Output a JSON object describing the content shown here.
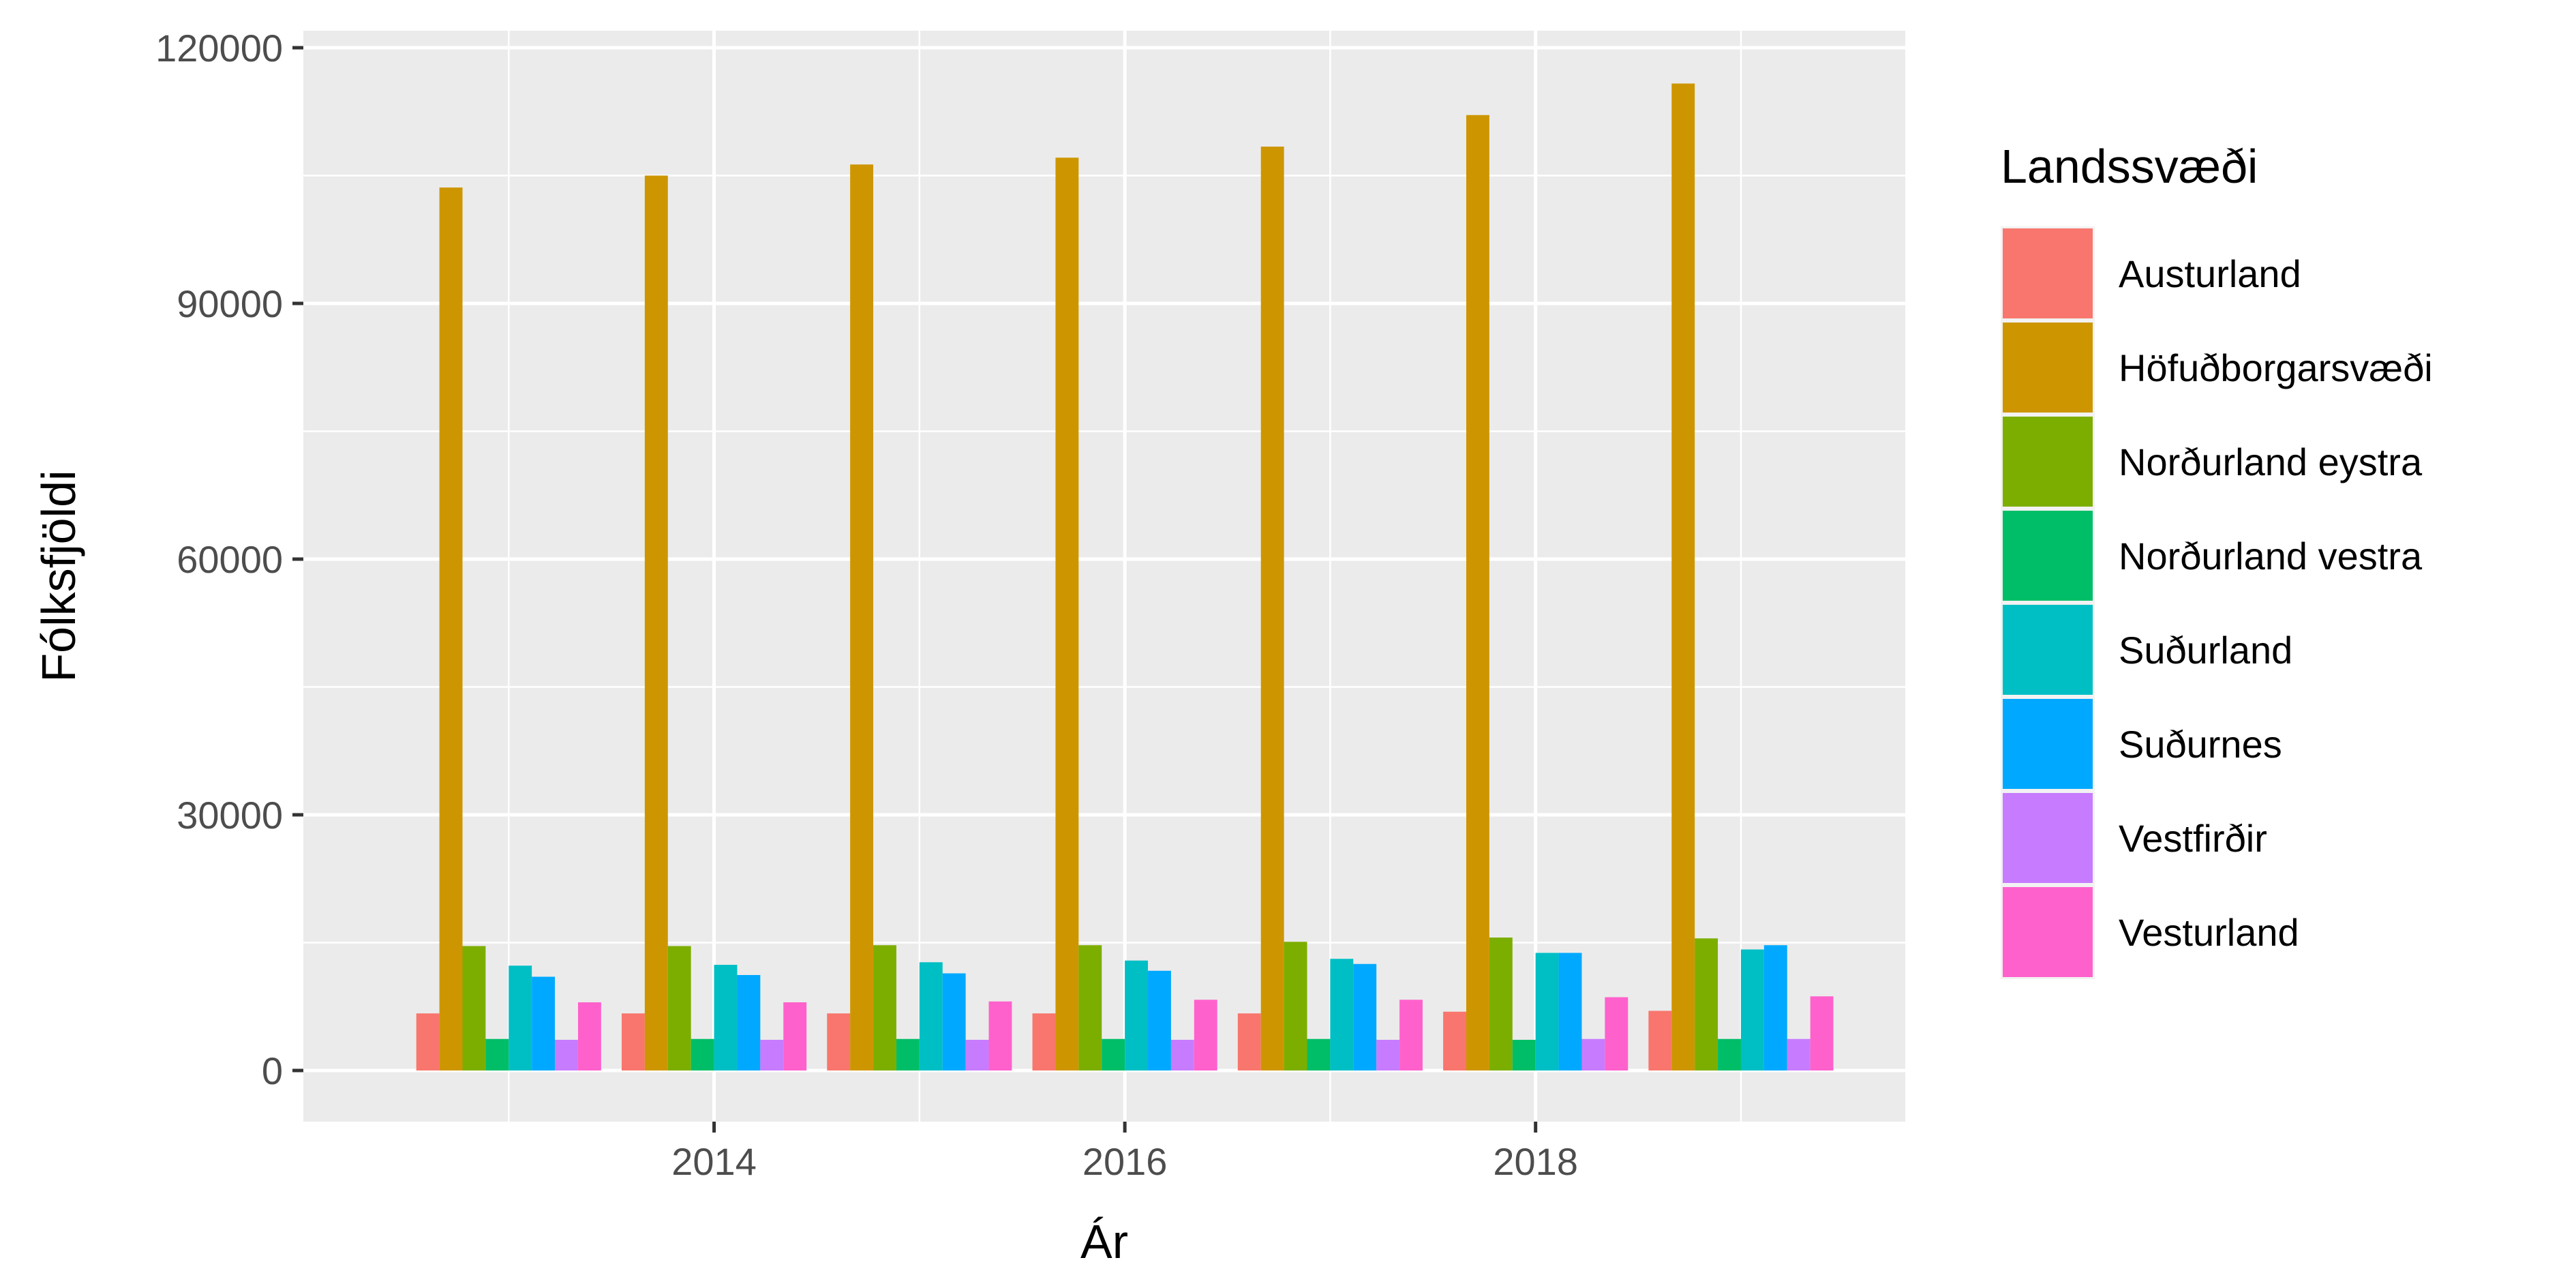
{
  "chart_data": {
    "type": "bar",
    "x": [
      2013,
      2014,
      2015,
      2016,
      2017,
      2018,
      2019
    ],
    "xlabel": "Ár",
    "ylabel": "Fólksfjöldi",
    "xlim": [
      2012,
      2019.8
    ],
    "x_ticks": [
      2014,
      2016,
      2018
    ],
    "x_tick_labels": [
      "2014",
      "2016",
      "2018"
    ],
    "ylim": [
      -6000,
      122000
    ],
    "y_ticks": [
      0,
      30000,
      60000,
      90000,
      120000
    ],
    "y_tick_labels": [
      "0",
      "30000",
      "60000",
      "90000",
      "120000"
    ],
    "grid": true,
    "legend": {
      "title": "Landssvæði",
      "position": "right"
    },
    "series": [
      {
        "name": "Austurland",
        "color": "#F8766D",
        "values": [
          6700,
          6700,
          6700,
          6700,
          6700,
          6900,
          7000
        ]
      },
      {
        "name": "Höfuðborgarsvæði",
        "color": "#CD9600",
        "values": [
          103600,
          105000,
          106300,
          107100,
          108400,
          112100,
          115800
        ]
      },
      {
        "name": "Norðurland eystra",
        "color": "#7CAE00",
        "values": [
          14600,
          14600,
          14700,
          14700,
          15100,
          15600,
          15500
        ]
      },
      {
        "name": "Norðurland vestra",
        "color": "#00BE67",
        "values": [
          3700,
          3700,
          3700,
          3700,
          3700,
          3600,
          3700
        ]
      },
      {
        "name": "Suðurland",
        "color": "#00BFC4",
        "values": [
          12300,
          12400,
          12700,
          12900,
          13100,
          13800,
          14200
        ]
      },
      {
        "name": "Suðurnes",
        "color": "#00A9FF",
        "values": [
          11000,
          11200,
          11400,
          11700,
          12500,
          13800,
          14700
        ]
      },
      {
        "name": "Vestfirðir",
        "color": "#C77CFF",
        "values": [
          3600,
          3600,
          3600,
          3600,
          3600,
          3700,
          3700
        ]
      },
      {
        "name": "Vesturland",
        "color": "#FF61CC",
        "values": [
          8000,
          8000,
          8100,
          8300,
          8300,
          8600,
          8700
        ]
      }
    ]
  }
}
